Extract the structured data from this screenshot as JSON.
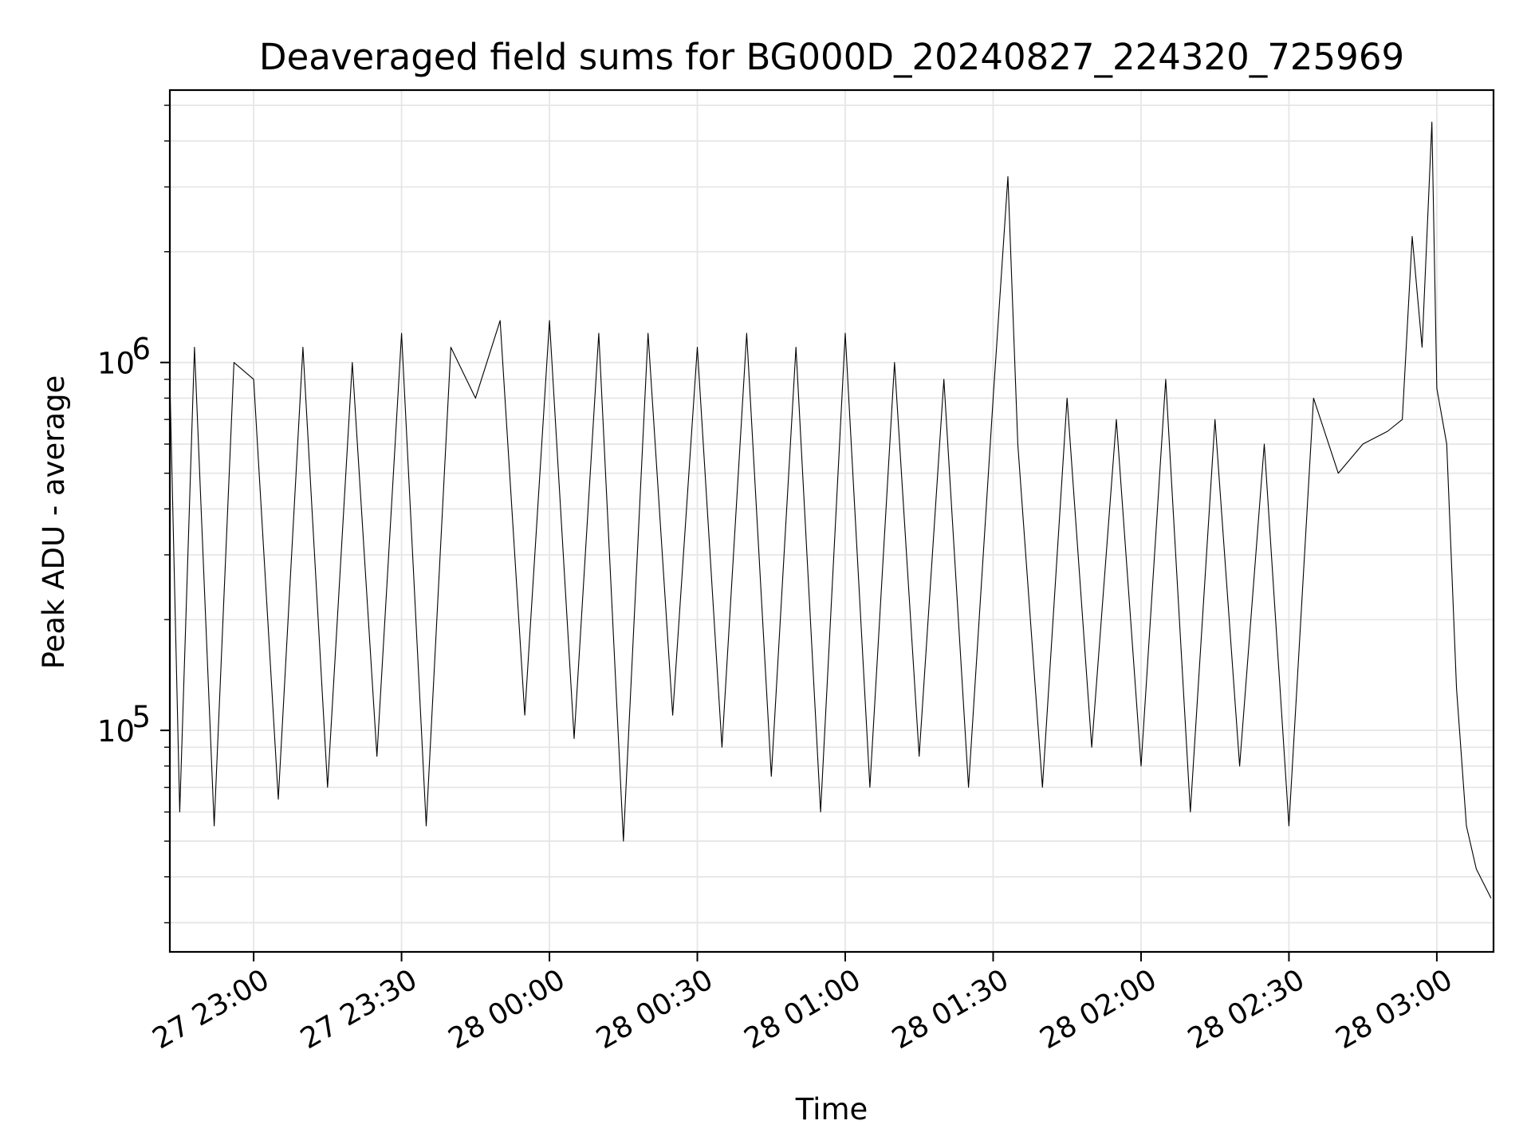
{
  "chart_data": {
    "type": "line",
    "title": "Deaveraged field sums for BG000D_20240827_224320_725969",
    "xlabel": "Time",
    "ylabel": "Peak ADU - average",
    "y_scale": "log",
    "ylim": [
      25000,
      5500000
    ],
    "xlim": [
      "2024-08-27 22:43:00",
      "2024-08-28 03:11:30"
    ],
    "x_ticks": [
      {
        "t": "2024-08-27 23:00",
        "label": "27 23:00"
      },
      {
        "t": "2024-08-27 23:30",
        "label": "27 23:30"
      },
      {
        "t": "2024-08-28 00:00",
        "label": "28 00:00"
      },
      {
        "t": "2024-08-28 00:30",
        "label": "28 00:30"
      },
      {
        "t": "2024-08-28 01:00",
        "label": "28 01:00"
      },
      {
        "t": "2024-08-28 01:30",
        "label": "28 01:30"
      },
      {
        "t": "2024-08-28 02:00",
        "label": "28 02:00"
      },
      {
        "t": "2024-08-28 02:30",
        "label": "28 02:30"
      },
      {
        "t": "2024-08-28 03:00",
        "label": "28 03:00"
      }
    ],
    "y_ticks": [
      {
        "value": 100000,
        "base": "10",
        "exp": "5"
      },
      {
        "value": 1000000,
        "base": "10",
        "exp": "6"
      }
    ],
    "grid": true,
    "line_color": "#000000",
    "series": [
      {
        "x": [
          "2024-08-27 22:43:00",
          "2024-08-27 22:45:00",
          "2024-08-27 22:48:00",
          "2024-08-27 22:52:00",
          "2024-08-27 22:56:00",
          "2024-08-27 23:00:00",
          "2024-08-27 23:05:00",
          "2024-08-27 23:10:00",
          "2024-08-27 23:15:00",
          "2024-08-27 23:20:00",
          "2024-08-27 23:25:00",
          "2024-08-27 23:30:00",
          "2024-08-27 23:35:00",
          "2024-08-27 23:40:00",
          "2024-08-27 23:45:00",
          "2024-08-27 23:50:00",
          "2024-08-27 23:55:00",
          "2024-08-28 00:00:00",
          "2024-08-28 00:05:00",
          "2024-08-28 00:10:00",
          "2024-08-28 00:15:00",
          "2024-08-28 00:20:00",
          "2024-08-28 00:25:00",
          "2024-08-28 00:30:00",
          "2024-08-28 00:35:00",
          "2024-08-28 00:40:00",
          "2024-08-28 00:45:00",
          "2024-08-28 00:50:00",
          "2024-08-28 00:55:00",
          "2024-08-28 01:00:00",
          "2024-08-28 01:05:00",
          "2024-08-28 01:10:00",
          "2024-08-28 01:15:00",
          "2024-08-28 01:20:00",
          "2024-08-28 01:25:00",
          "2024-08-28 01:30:00",
          "2024-08-28 01:33:00",
          "2024-08-28 01:35:00",
          "2024-08-28 01:40:00",
          "2024-08-28 01:45:00",
          "2024-08-28 01:50:00",
          "2024-08-28 01:55:00",
          "2024-08-28 02:00:00",
          "2024-08-28 02:05:00",
          "2024-08-28 02:10:00",
          "2024-08-28 02:15:00",
          "2024-08-28 02:20:00",
          "2024-08-28 02:25:00",
          "2024-08-28 02:30:00",
          "2024-08-28 02:35:00",
          "2024-08-28 02:40:00",
          "2024-08-28 02:45:00",
          "2024-08-28 02:50:00",
          "2024-08-28 02:53:00",
          "2024-08-28 02:55:00",
          "2024-08-28 02:57:00",
          "2024-08-28 02:59:00",
          "2024-08-28 03:00:00",
          "2024-08-28 03:02:00",
          "2024-08-28 03:04:00",
          "2024-08-28 03:06:00",
          "2024-08-28 03:08:00",
          "2024-08-28 03:11:00"
        ],
        "y": [
          900000,
          60000,
          1100000,
          55000,
          1000000,
          900000,
          65000,
          1100000,
          70000,
          1000000,
          85000,
          1200000,
          55000,
          1100000,
          800000,
          1300000,
          110000,
          1300000,
          95000,
          1200000,
          50000,
          1200000,
          110000,
          1100000,
          90000,
          1200000,
          75000,
          1100000,
          60000,
          1200000,
          70000,
          1000000,
          85000,
          900000,
          70000,
          800000,
          3200000,
          600000,
          70000,
          800000,
          90000,
          700000,
          80000,
          900000,
          60000,
          700000,
          80000,
          600000,
          55000,
          800000,
          500000,
          600000,
          650000,
          700000,
          2200000,
          1100000,
          4500000,
          850000,
          600000,
          130000,
          55000,
          42000,
          35000
        ]
      }
    ]
  }
}
